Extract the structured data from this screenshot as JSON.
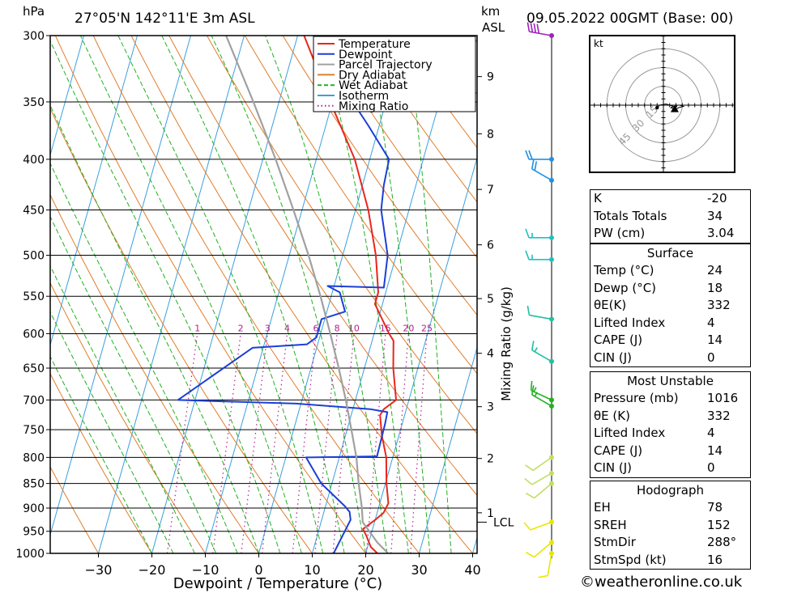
{
  "header": {
    "station": "27°05'N  142°11'E  3m  ASL",
    "datetime": "09.05.2022  00GMT  (Base: 00)",
    "pressure_unit": "hPa",
    "km_unit": "km",
    "asl_unit": "ASL"
  },
  "copyright": "©weatheronline.co.uk",
  "chart_data": [
    {
      "type": "line",
      "subtype": "skew-T log-P diagram",
      "xlabel": "Dewpoint / Temperature (°C)",
      "ylabel": "hPa",
      "right_label": "Mixing Ratio (g/kg)",
      "x_ticks": [
        "−30",
        "−20",
        "−10",
        "0",
        "10",
        "20",
        "30",
        "40"
      ],
      "x_tick_values": [
        -30,
        -20,
        -10,
        0,
        10,
        20,
        30,
        40
      ],
      "pressure_ticks": [
        300,
        350,
        400,
        450,
        500,
        550,
        600,
        650,
        700,
        750,
        800,
        850,
        900,
        950,
        1000
      ],
      "pressure_tick_labels": [
        "300",
        "350",
        "400",
        "450",
        "500",
        "550",
        "600",
        "650",
        "700",
        "750",
        "800",
        "850",
        "900",
        "950",
        "1000"
      ],
      "km_ticks": [
        {
          "label": "1",
          "p": 910
        },
        {
          "label": "2",
          "p": 802
        },
        {
          "label": "3",
          "p": 711
        },
        {
          "label": "4",
          "p": 628
        },
        {
          "label": "5",
          "p": 553
        },
        {
          "label": "6",
          "p": 488
        },
        {
          "label": "7",
          "p": 429
        },
        {
          "label": "8",
          "p": 377
        },
        {
          "label": "9",
          "p": 330
        }
      ],
      "lcl": {
        "label": "LCL",
        "p": 930
      },
      "mixing_ratio_labels": [
        "1",
        "2",
        "3",
        "4",
        "6",
        "8",
        "10",
        "15",
        "20",
        "25"
      ],
      "mixing_ratio_values": [
        1,
        2,
        3,
        4,
        6,
        8,
        10,
        15,
        20,
        25
      ],
      "legend": {
        "position": "top-right",
        "entries": [
          {
            "name": "Temperature",
            "color": "#e8261e",
            "style": "solid"
          },
          {
            "name": "Dewpoint",
            "color": "#1b3fd6",
            "style": "solid"
          },
          {
            "name": "Parcel Trajectory",
            "color": "#a0a0a0",
            "style": "solid"
          },
          {
            "name": "Dry Adiabat",
            "color": "#e07d2a",
            "style": "solid"
          },
          {
            "name": "Wet Adiabat",
            "color": "#22b022",
            "style": "dashed"
          },
          {
            "name": "Isotherm",
            "color": "#3aa0e0",
            "style": "solid"
          },
          {
            "name": "Mixing Ratio",
            "color": "#b0208e",
            "style": "dotted"
          }
        ]
      },
      "series": [
        {
          "name": "Temperature",
          "color": "#e8261e",
          "points": [
            [
              1000,
              22.2
            ],
            [
              985,
              20.6
            ],
            [
              960,
              19.2
            ],
            [
              945,
              18.2
            ],
            [
              925,
              20.0
            ],
            [
              910,
              21.2
            ],
            [
              890,
              21.6
            ],
            [
              850,
              20.2
            ],
            [
              800,
              18.8
            ],
            [
              760,
              16.8
            ],
            [
              725,
              15.4
            ],
            [
              715,
              15.8
            ],
            [
              700,
              17.6
            ],
            [
              650,
              15.4
            ],
            [
              610,
              14.0
            ],
            [
              600,
              12.8
            ],
            [
              560,
              8.6
            ],
            [
              545,
              8.6
            ],
            [
              500,
              6.2
            ],
            [
              450,
              2.4
            ],
            [
              400,
              -2.8
            ],
            [
              350,
              -10.4
            ],
            [
              300,
              -18.8
            ]
          ]
        },
        {
          "name": "Dewpoint",
          "color": "#1b3fd6",
          "points": [
            [
              1000,
              14.0
            ],
            [
              925,
              15.4
            ],
            [
              908,
              14.8
            ],
            [
              896,
              13.6
            ],
            [
              850,
              8.0
            ],
            [
              800,
              3.8
            ],
            [
              798,
              17.0
            ],
            [
              740,
              16.8
            ],
            [
              720,
              16.6
            ],
            [
              715,
              13.2
            ],
            [
              706,
              -0.8
            ],
            [
              700,
              -23.2
            ],
            [
              620,
              -12.0
            ],
            [
              615,
              -2.0
            ],
            [
              605,
              -0.6
            ],
            [
              580,
              -0.6
            ],
            [
              570,
              3.4
            ],
            [
              545,
              1.4
            ],
            [
              537,
              -1.2
            ],
            [
              539,
              9.4
            ],
            [
              500,
              8.4
            ],
            [
              450,
              4.8
            ],
            [
              425,
              4.0
            ],
            [
              400,
              3.6
            ],
            [
              370,
              -2.0
            ],
            [
              350,
              -6.2
            ],
            [
              330,
              -7.4
            ],
            [
              315,
              -8.8
            ],
            [
              300,
              -8.0
            ]
          ]
        },
        {
          "name": "Parcel Trajectory",
          "color": "#a0a0a0",
          "points": [
            [
              1000,
              24.2
            ],
            [
              975,
              21.6
            ],
            [
              930,
              17.8
            ],
            [
              900,
              16.9
            ],
            [
              850,
              15.0
            ],
            [
              800,
              13.2
            ],
            [
              750,
              10.8
            ],
            [
              700,
              8.2
            ],
            [
              650,
              5.2
            ],
            [
              600,
              1.8
            ],
            [
              550,
              -2.0
            ],
            [
              500,
              -6.4
            ],
            [
              450,
              -11.6
            ],
            [
              400,
              -17.6
            ],
            [
              350,
              -24.8
            ],
            [
              300,
              -33.4
            ]
          ]
        }
      ],
      "wind_barbs": [
        {
          "p": 1000,
          "dir": 190,
          "kt": 10,
          "color": "#e8e800"
        },
        {
          "p": 975,
          "dir": 230,
          "kt": 10,
          "color": "#e8e800"
        },
        {
          "p": 930,
          "dir": 250,
          "kt": 10,
          "color": "#e8e800"
        },
        {
          "p": 850,
          "dir": 230,
          "kt": 10,
          "color": "#c0e060"
        },
        {
          "p": 830,
          "dir": 240,
          "kt": 10,
          "color": "#c0e060"
        },
        {
          "p": 800,
          "dir": 235,
          "kt": 10,
          "color": "#c0e060"
        },
        {
          "p": 710,
          "dir": 300,
          "kt": 15,
          "color": "#22b022"
        },
        {
          "p": 700,
          "dir": 295,
          "kt": 15,
          "color": "#22b022"
        },
        {
          "p": 640,
          "dir": 300,
          "kt": 15,
          "color": "#20c0a0"
        },
        {
          "p": 580,
          "dir": 280,
          "kt": 10,
          "color": "#20c0a0"
        },
        {
          "p": 505,
          "dir": 270,
          "kt": 15,
          "color": "#20c0c0"
        },
        {
          "p": 480,
          "dir": 270,
          "kt": 15,
          "color": "#20c0c0"
        },
        {
          "p": 420,
          "dir": 300,
          "kt": 20,
          "color": "#2090e0"
        },
        {
          "p": 400,
          "dir": 270,
          "kt": 20,
          "color": "#2090e0"
        },
        {
          "p": 300,
          "dir": 280,
          "kt": 40,
          "color": "#a020c0"
        }
      ]
    },
    {
      "type": "scatter",
      "subtype": "hodograph",
      "unit_label": "kt",
      "ring_labels": [
        "15",
        "30",
        "45"
      ],
      "ring_values": [
        15,
        30,
        45
      ],
      "trace_uv": [
        [
          -5,
          -2
        ],
        [
          -3,
          0
        ],
        [
          2,
          1
        ],
        [
          5,
          0
        ],
        [
          8,
          -1
        ],
        [
          6,
          -2
        ],
        [
          9,
          -3
        ],
        [
          10,
          -2
        ],
        [
          11,
          0
        ],
        [
          13,
          0
        ],
        [
          16,
          -1
        ],
        [
          12,
          -2
        ],
        [
          9,
          -4
        ]
      ],
      "storm_motion_uv": [
        9,
        -3
      ]
    }
  ],
  "tables": {
    "index": [
      {
        "label": "K",
        "value": "-20"
      },
      {
        "label": "Totals Totals",
        "value": "34"
      },
      {
        "label": "PW (cm)",
        "value": "3.04"
      }
    ],
    "surface": {
      "title": "Surface",
      "rows": [
        {
          "label": "Temp (°C)",
          "value": "24"
        },
        {
          "label": "Dewp (°C)",
          "value": "18"
        },
        {
          "label": "θE(K)",
          "value": "332"
        },
        {
          "label": "Lifted Index",
          "value": "4"
        },
        {
          "label": "CAPE (J)",
          "value": "14"
        },
        {
          "label": "CIN (J)",
          "value": "0"
        }
      ]
    },
    "most_unstable": {
      "title": "Most Unstable",
      "rows": [
        {
          "label": "Pressure (mb)",
          "value": "1016"
        },
        {
          "label": "θE (K)",
          "value": "332"
        },
        {
          "label": "Lifted Index",
          "value": "4"
        },
        {
          "label": "CAPE (J)",
          "value": "14"
        },
        {
          "label": "CIN (J)",
          "value": "0"
        }
      ]
    },
    "hodograph": {
      "title": "Hodograph",
      "rows": [
        {
          "label": "EH",
          "value": "78"
        },
        {
          "label": "SREH",
          "value": "152"
        },
        {
          "label": "StmDir",
          "value": "288°"
        },
        {
          "label": "StmSpd (kt)",
          "value": "16"
        }
      ]
    }
  }
}
